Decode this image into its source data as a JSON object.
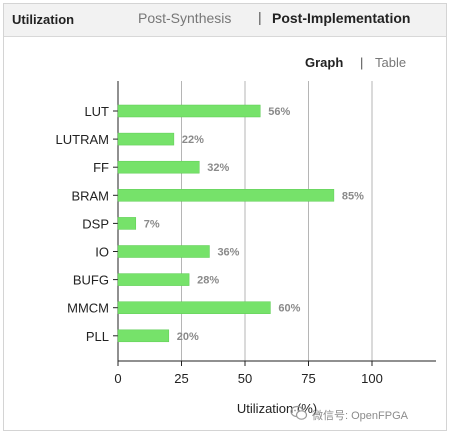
{
  "header": {
    "title": "Utilization",
    "tabs": [
      {
        "label": "Post-Synthesis",
        "active": false
      },
      {
        "label": "Post-Implementation",
        "active": true
      }
    ],
    "separator": "|"
  },
  "view_toggle": {
    "graph_label": "Graph",
    "table_label": "Table",
    "separator": "|",
    "active": "Graph"
  },
  "colors": {
    "bar": "#76e26a",
    "bar_stroke": "#5ccc52",
    "grid": "#b5b5b5",
    "axis": "#222222"
  },
  "chart_data": {
    "type": "bar",
    "orientation": "horizontal",
    "categories": [
      "LUT",
      "LUTRAM",
      "FF",
      "BRAM",
      "DSP",
      "IO",
      "BUFG",
      "MMCM",
      "PLL"
    ],
    "values": [
      56,
      22,
      32,
      85,
      7,
      36,
      28,
      60,
      20
    ],
    "value_labels": [
      "56%",
      "22%",
      "32%",
      "85%",
      "7%",
      "36%",
      "28%",
      "60%",
      "20%"
    ],
    "xlabel": "Utilization (%)",
    "xlim": [
      0,
      125
    ],
    "xticks": [
      0,
      25,
      50,
      75,
      100
    ],
    "grid": true
  },
  "watermark": {
    "text": "微信号: OpenFPGA",
    "icon": "wechat-icon"
  }
}
